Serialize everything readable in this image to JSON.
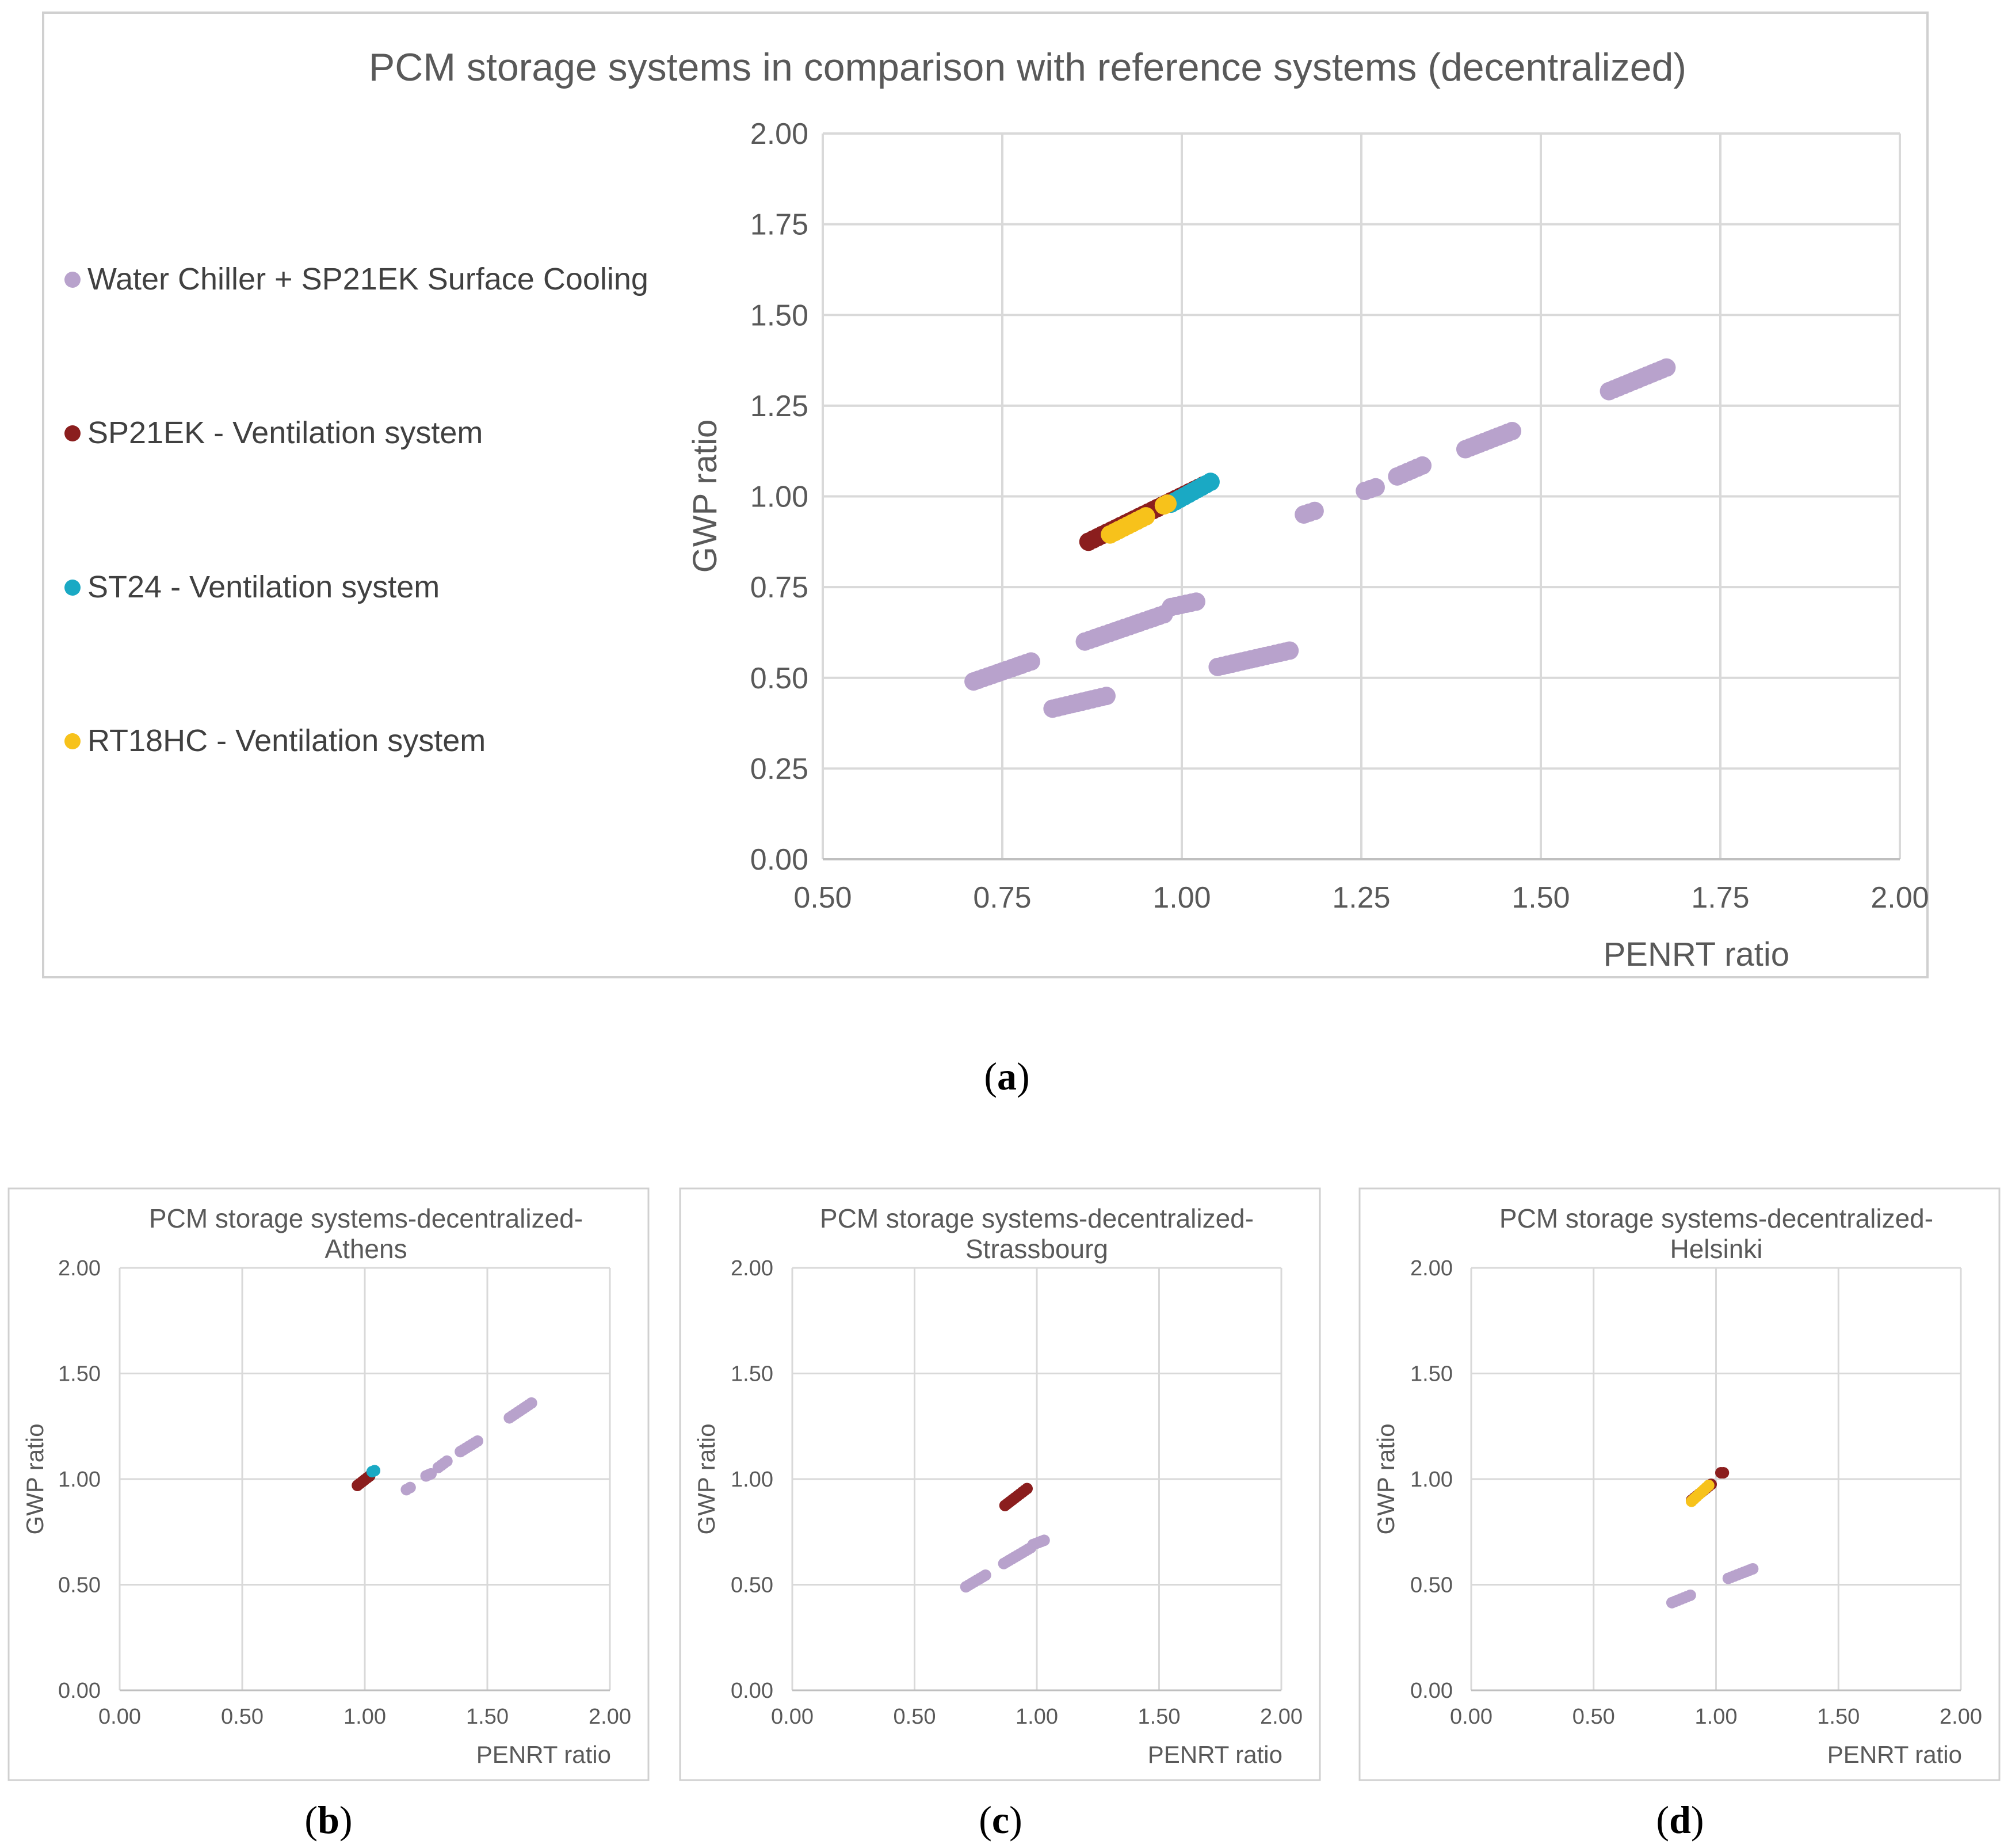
{
  "colors": {
    "water_chiller": "#b8a2cc",
    "sp21ek": "#8b1e1e",
    "st24": "#1aa9c4",
    "rt18hc": "#f7c21b",
    "grid": "#d9d9d9",
    "text": "#595959"
  },
  "chart_data": [
    {
      "id": "a",
      "type": "scatter",
      "caption_letter": "a",
      "title": "PCM storage systems in comparison with reference systems (decentralized)",
      "xlabel": "PENRT ratio",
      "ylabel": "GWP ratio",
      "xlim": [
        0.5,
        2.0
      ],
      "ylim": [
        0.0,
        2.0
      ],
      "xticks": [
        "0.50",
        "0.75",
        "1.00",
        "1.25",
        "1.50",
        "1.75",
        "2.00"
      ],
      "yticks": [
        "0.00",
        "0.25",
        "0.50",
        "0.75",
        "1.00",
        "1.25",
        "1.50",
        "1.75",
        "2.00"
      ],
      "grid": true,
      "legend_position": "left",
      "legend": [
        {
          "key": "water_chiller",
          "label": "Water Chiller + SP21EK Surface Cooling"
        },
        {
          "key": "sp21ek",
          "label": "SP21EK - Ventilation system"
        },
        {
          "key": "st24",
          "label": "ST24 - Ventilation system"
        },
        {
          "key": "rt18hc",
          "label": "RT18HC - Ventilation system"
        }
      ],
      "series": [
        {
          "key": "water_chiller",
          "segments": [
            [
              [
                0.71,
                0.49
              ],
              [
                0.79,
                0.545
              ]
            ],
            [
              [
                0.82,
                0.415
              ],
              [
                0.895,
                0.45
              ]
            ],
            [
              [
                0.865,
                0.6
              ],
              [
                0.975,
                0.675
              ]
            ],
            [
              [
                0.985,
                0.695
              ],
              [
                1.02,
                0.71
              ]
            ],
            [
              [
                1.05,
                0.53
              ],
              [
                1.15,
                0.575
              ]
            ],
            [
              [
                1.17,
                0.95
              ],
              [
                1.185,
                0.96
              ]
            ],
            [
              [
                1.255,
                1.015
              ],
              [
                1.27,
                1.025
              ]
            ],
            [
              [
                1.3,
                1.055
              ],
              [
                1.335,
                1.085
              ]
            ],
            [
              [
                1.395,
                1.13
              ],
              [
                1.46,
                1.18
              ]
            ],
            [
              [
                1.595,
                1.29
              ],
              [
                1.675,
                1.355
              ]
            ]
          ]
        },
        {
          "key": "sp21ek",
          "segments": [
            [
              [
                0.87,
                0.875
              ],
              [
                1.03,
                1.03
              ]
            ]
          ]
        },
        {
          "key": "st24",
          "segments": [
            [
              [
                0.985,
                0.98
              ],
              [
                1.04,
                1.04
              ]
            ]
          ]
        },
        {
          "key": "rt18hc",
          "segments": [
            [
              [
                0.9,
                0.895
              ],
              [
                0.95,
                0.945
              ]
            ],
            [
              [
                0.975,
                0.975
              ],
              [
                0.98,
                0.98
              ]
            ]
          ]
        }
      ]
    },
    {
      "id": "b",
      "type": "scatter",
      "caption_letter": "b",
      "title_lines": [
        "PCM storage systems-decentralized-",
        "Athens"
      ],
      "xlabel": "PENRT ratio",
      "ylabel": "GWP ratio",
      "xlim": [
        0.0,
        2.0
      ],
      "ylim": [
        0.0,
        2.0
      ],
      "xticks": [
        "0.00",
        "0.50",
        "1.00",
        "1.50",
        "2.00"
      ],
      "yticks": [
        "0.00",
        "0.50",
        "1.00",
        "1.50",
        "2.00"
      ],
      "grid": true,
      "series": [
        {
          "key": "water_chiller",
          "segments": [
            [
              [
                1.17,
                0.95
              ],
              [
                1.185,
                0.96
              ]
            ],
            [
              [
                1.25,
                1.015
              ],
              [
                1.27,
                1.025
              ]
            ],
            [
              [
                1.3,
                1.055
              ],
              [
                1.335,
                1.085
              ]
            ],
            [
              [
                1.39,
                1.13
              ],
              [
                1.46,
                1.18
              ]
            ],
            [
              [
                1.59,
                1.29
              ],
              [
                1.68,
                1.36
              ]
            ]
          ]
        },
        {
          "key": "sp21ek",
          "segments": [
            [
              [
                0.97,
                0.97
              ],
              [
                1.02,
                1.015
              ]
            ]
          ]
        },
        {
          "key": "st24",
          "segments": [
            [
              [
                1.03,
                1.035
              ],
              [
                1.04,
                1.04
              ]
            ]
          ]
        }
      ]
    },
    {
      "id": "c",
      "type": "scatter",
      "caption_letter": "c",
      "title_lines": [
        "PCM storage systems-decentralized-",
        "Strassbourg"
      ],
      "xlabel": "PENRT ratio",
      "ylabel": "GWP ratio",
      "xlim": [
        0.0,
        2.0
      ],
      "ylim": [
        0.0,
        2.0
      ],
      "xticks": [
        "0.00",
        "0.50",
        "1.00",
        "1.50",
        "2.00"
      ],
      "yticks": [
        "0.00",
        "0.50",
        "1.00",
        "1.50",
        "2.00"
      ],
      "grid": true,
      "series": [
        {
          "key": "water_chiller",
          "segments": [
            [
              [
                0.71,
                0.49
              ],
              [
                0.79,
                0.545
              ]
            ],
            [
              [
                0.865,
                0.6
              ],
              [
                0.975,
                0.675
              ]
            ],
            [
              [
                0.985,
                0.69
              ],
              [
                1.03,
                0.71
              ]
            ]
          ]
        },
        {
          "key": "sp21ek",
          "segments": [
            [
              [
                0.87,
                0.875
              ],
              [
                0.96,
                0.955
              ]
            ]
          ]
        }
      ]
    },
    {
      "id": "d",
      "type": "scatter",
      "caption_letter": "d",
      "title_lines": [
        "PCM storage systems-decentralized-",
        "Helsinki"
      ],
      "xlabel": "PENRT ratio",
      "ylabel": "GWP ratio",
      "xlim": [
        0.0,
        2.0
      ],
      "ylim": [
        0.0,
        2.0
      ],
      "xticks": [
        "0.00",
        "0.50",
        "1.00",
        "1.50",
        "2.00"
      ],
      "yticks": [
        "0.00",
        "0.50",
        "1.00",
        "1.50",
        "2.00"
      ],
      "grid": true,
      "series": [
        {
          "key": "water_chiller",
          "segments": [
            [
              [
                0.82,
                0.415
              ],
              [
                0.895,
                0.45
              ]
            ],
            [
              [
                1.05,
                0.53
              ],
              [
                1.15,
                0.575
              ]
            ]
          ]
        },
        {
          "key": "sp21ek",
          "segments": [
            [
              [
                0.9,
                0.9
              ],
              [
                0.98,
                0.975
              ]
            ],
            [
              [
                1.02,
                1.03
              ],
              [
                1.03,
                1.03
              ]
            ]
          ]
        },
        {
          "key": "rt18hc",
          "segments": [
            [
              [
                0.9,
                0.895
              ],
              [
                0.97,
                0.97
              ]
            ]
          ]
        }
      ]
    }
  ]
}
